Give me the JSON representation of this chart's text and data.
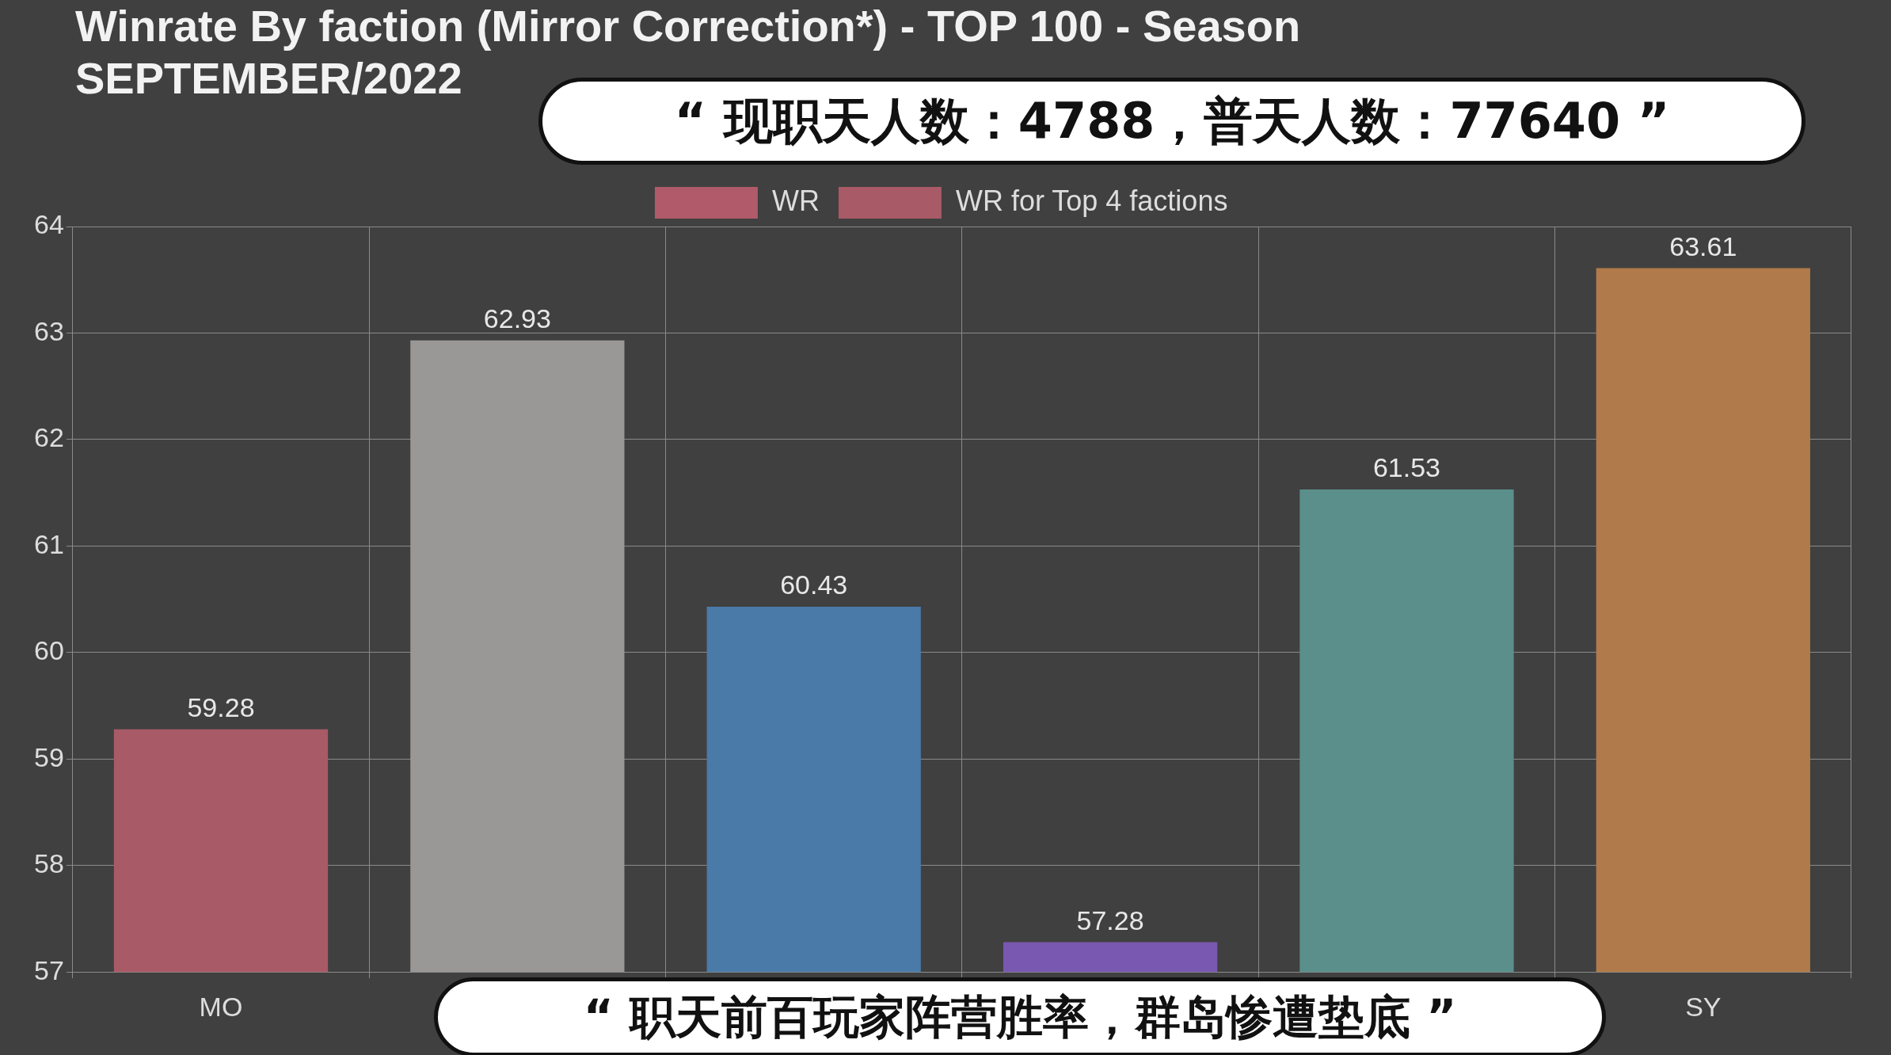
{
  "chart_data": {
    "type": "bar",
    "title": "Winrate By faction (Mirror Correction*) - TOP 100 - Season SEPTEMBER/2022",
    "categories": [
      "MO",
      null,
      null,
      null,
      null,
      "SY"
    ],
    "series": [
      {
        "name": "WR",
        "color": "#b05a6a",
        "values": [
          null,
          null,
          null,
          null,
          null,
          null
        ]
      },
      {
        "name": "WR for Top 4 factions",
        "colors": [
          "#a85a66",
          "#999897",
          "#4a7aa8",
          "#7858b0",
          "#5a8f8b",
          "#b07a4a"
        ],
        "values": [
          59.28,
          62.93,
          60.43,
          57.28,
          61.53,
          63.61
        ]
      }
    ],
    "ylim": [
      57,
      64
    ],
    "yticks": [
      57,
      58,
      59,
      60,
      61,
      62,
      63,
      64
    ],
    "grid": true,
    "legend": "top",
    "data_labels": true,
    "annotations": [
      "“ 现职天人数：4788，普天人数：77640 ”",
      "“ 职天前百玩家阵营胜率，群岛惨遭垫底 ”"
    ]
  }
}
